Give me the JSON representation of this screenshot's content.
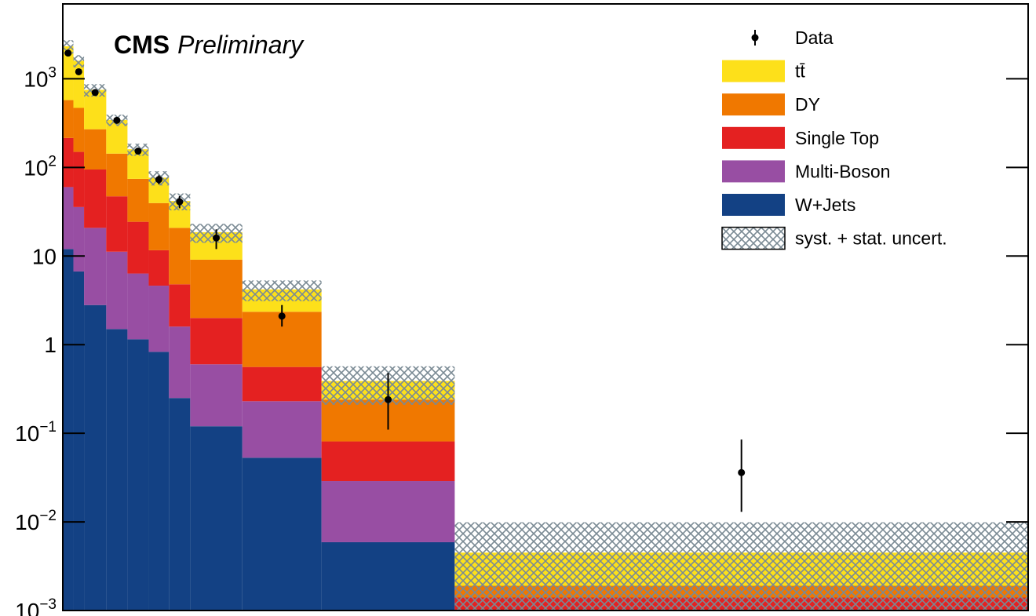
{
  "chart_data": {
    "type": "stacked-histogram",
    "title": "CMS",
    "subtitle": "Preliminary",
    "log_y": true,
    "bins": [
      0,
      11,
      22,
      45,
      67,
      89,
      110,
      132,
      186,
      268,
      406,
      1000
    ],
    "xlim": [
      0,
      1000
    ],
    "ylim": [
      0.001,
      7000
    ],
    "yticks": [
      {
        "value": 0.001,
        "label": "10",
        "exponent": "−3"
      },
      {
        "value": 0.01,
        "label": "10",
        "exponent": "−2"
      },
      {
        "value": 0.1,
        "label": "10",
        "exponent": "−1"
      },
      1,
      10,
      {
        "value": 100,
        "label": "10",
        "exponent": "2"
      },
      {
        "value": 1000,
        "label": "10",
        "exponent": "3"
      }
    ],
    "legend_position": "upper right",
    "series": [
      {
        "name": "tt̄",
        "color": "#fde01a",
        "values": [
          1750,
          1130,
          480,
          200,
          86,
          37,
          21,
          9.5,
          1.85,
          0.15,
          0.0026
        ]
      },
      {
        "name": "DY",
        "color": "#f07800",
        "values": [
          360,
          320,
          175,
          96,
          50,
          28,
          16,
          7.1,
          1.79,
          0.159,
          0.0005
        ]
      },
      {
        "name": "Single Top",
        "color": "#e42121",
        "values": [
          155,
          114,
          74,
          36,
          18,
          7,
          3.2,
          1.4,
          0.33,
          0.052,
          0.0014
        ]
      },
      {
        "name": "Multi-Boson",
        "color": "#984ea3",
        "values": [
          48,
          29,
          18,
          9.7,
          5.2,
          3.8,
          1.35,
          0.48,
          0.177,
          0.023,
          0
        ]
      },
      {
        "name": "W+Jets",
        "color": "#134184",
        "values": [
          12,
          6.7,
          2.8,
          1.5,
          1.15,
          0.83,
          0.25,
          0.12,
          0.053,
          0.0059,
          0
        ]
      }
    ],
    "data": {
      "name": "Data",
      "color": "#000000",
      "values": [
        1950,
        1200,
        700,
        340,
        153,
        73,
        41,
        16,
        2.1,
        0.24,
        0.036
      ],
      "errors_low": [
        44,
        35,
        26,
        18,
        12,
        8.5,
        6.4,
        4,
        0.5,
        0.13,
        0.023
      ],
      "errors_high": [
        44,
        35,
        26,
        18,
        12,
        8.5,
        6.4,
        4,
        0.7,
        0.24,
        0.049
      ]
    },
    "uncertainty": {
      "name": "syst. + stat. uncert.",
      "color": "#7a8a94",
      "values": [
        400,
        250,
        120,
        50,
        25,
        14,
        9,
        4.5,
        1.1,
        0.18,
        0.0054
      ]
    }
  }
}
